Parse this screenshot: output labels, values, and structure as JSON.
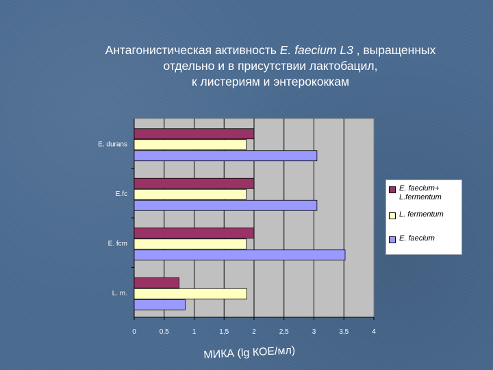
{
  "title": {
    "line1_a": "Антагонистическая активность ",
    "line1_species": "E. faecium L3",
    "line1_b": " , выращенных",
    "line2": "отдельно и в присутствии лактобацил,",
    "line3": "к листериям и энтерококкам"
  },
  "chart_data": {
    "type": "bar",
    "orientation": "horizontal",
    "categories": [
      "E. durans",
      "E.fc",
      "E. fcm",
      "L. m."
    ],
    "series": [
      {
        "name": "E. faecium+ L.fermentum",
        "color": "#993366",
        "values": [
          2.0,
          2.0,
          2.0,
          0.75
        ]
      },
      {
        "name": "L. fermentum",
        "color": "#ffffc0",
        "values": [
          1.87,
          1.87,
          1.87,
          1.88
        ]
      },
      {
        "name": "E. faecium",
        "color": "#9999ff",
        "values": [
          3.05,
          3.05,
          3.52,
          0.85
        ]
      }
    ],
    "xlim": [
      0,
      4
    ],
    "xticks": [
      "0",
      "0,5",
      "1",
      "1,5",
      "2",
      "2,5",
      "3",
      "3,5",
      "4"
    ],
    "xlabel": "МИКА (lg КОЕ/мл)",
    "ylabel": "",
    "grid": "vertical",
    "legend_position": "right"
  },
  "legend": {
    "items": [
      {
        "label_line1": "E. faecium+",
        "label_line2": "L.fermentum",
        "color": "#993366"
      },
      {
        "label_line1": "L. fermentum",
        "label_line2": "",
        "color": "#ffffc0"
      },
      {
        "label_line1": "E. faecium",
        "label_line2": "",
        "color": "#9999ff"
      }
    ]
  }
}
